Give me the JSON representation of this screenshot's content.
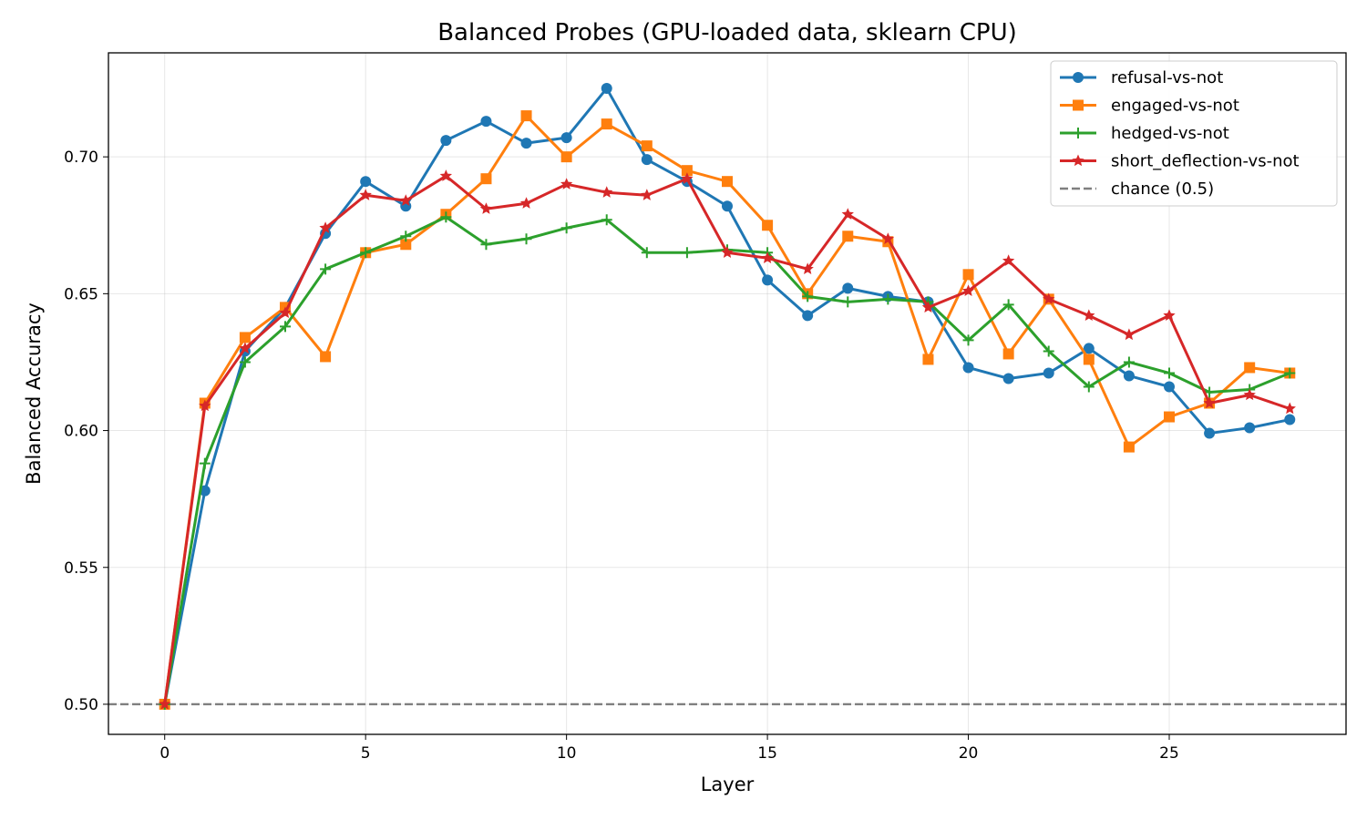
{
  "chart_data": {
    "type": "line",
    "title": "Balanced Probes (GPU-loaded data, sklearn CPU)",
    "xlabel": "Layer",
    "ylabel": "Balanced Accuracy",
    "xlim": [
      -1.4,
      29.4
    ],
    "ylim": [
      0.489,
      0.738
    ],
    "xticks": [
      0,
      5,
      10,
      15,
      20,
      25
    ],
    "xtick_labels": [
      "0",
      "5",
      "10",
      "15",
      "20",
      "25"
    ],
    "yticks": [
      0.5,
      0.55,
      0.6,
      0.65,
      0.7
    ],
    "ytick_labels": [
      "0.50",
      "0.55",
      "0.60",
      "0.65",
      "0.70"
    ],
    "grid": true,
    "legend_position": "top-right",
    "x": [
      0,
      1,
      2,
      3,
      4,
      5,
      6,
      7,
      8,
      9,
      10,
      11,
      12,
      13,
      14,
      15,
      16,
      17,
      18,
      19,
      20,
      21,
      22,
      23,
      24,
      25,
      26,
      27,
      28
    ],
    "series": [
      {
        "name": "refusal-vs-not",
        "color": "#1f77b4",
        "marker": "circle",
        "values": [
          0.5,
          0.578,
          0.629,
          0.645,
          0.672,
          0.691,
          0.682,
          0.706,
          0.713,
          0.705,
          0.707,
          0.725,
          0.699,
          0.691,
          0.682,
          0.655,
          0.642,
          0.652,
          0.649,
          0.647,
          0.623,
          0.619,
          0.621,
          0.63,
          0.62,
          0.616,
          0.599,
          0.601,
          0.604
        ]
      },
      {
        "name": "engaged-vs-not",
        "color": "#ff7f0e",
        "marker": "square",
        "values": [
          0.5,
          0.61,
          0.634,
          0.645,
          0.627,
          0.665,
          0.668,
          0.679,
          0.692,
          0.715,
          0.7,
          0.712,
          0.704,
          0.695,
          0.691,
          0.675,
          0.65,
          0.671,
          0.669,
          0.626,
          0.657,
          0.628,
          0.648,
          0.626,
          0.594,
          0.605,
          0.61,
          0.623,
          0.621
        ]
      },
      {
        "name": "hedged-vs-not",
        "color": "#2ca02c",
        "marker": "plus",
        "values": [
          0.5,
          0.588,
          0.625,
          0.638,
          0.659,
          0.665,
          0.671,
          0.678,
          0.668,
          0.67,
          0.674,
          0.677,
          0.665,
          0.665,
          0.666,
          0.665,
          0.649,
          0.647,
          0.648,
          0.647,
          0.633,
          0.646,
          0.629,
          0.616,
          0.625,
          0.621,
          0.614,
          0.615,
          0.621
        ]
      },
      {
        "name": "short_deflection-vs-not",
        "color": "#d62728",
        "marker": "star",
        "values": [
          0.5,
          0.609,
          0.63,
          0.643,
          0.674,
          0.686,
          0.684,
          0.693,
          0.681,
          0.683,
          0.69,
          0.687,
          0.686,
          0.692,
          0.665,
          0.663,
          0.659,
          0.679,
          0.67,
          0.645,
          0.651,
          0.662,
          0.648,
          0.642,
          0.635,
          0.642,
          0.61,
          0.613,
          0.608
        ]
      }
    ],
    "reference_line": {
      "name": "chance (0.5)",
      "y": 0.5,
      "color": "#7f7f7f",
      "style": "dashed"
    }
  }
}
